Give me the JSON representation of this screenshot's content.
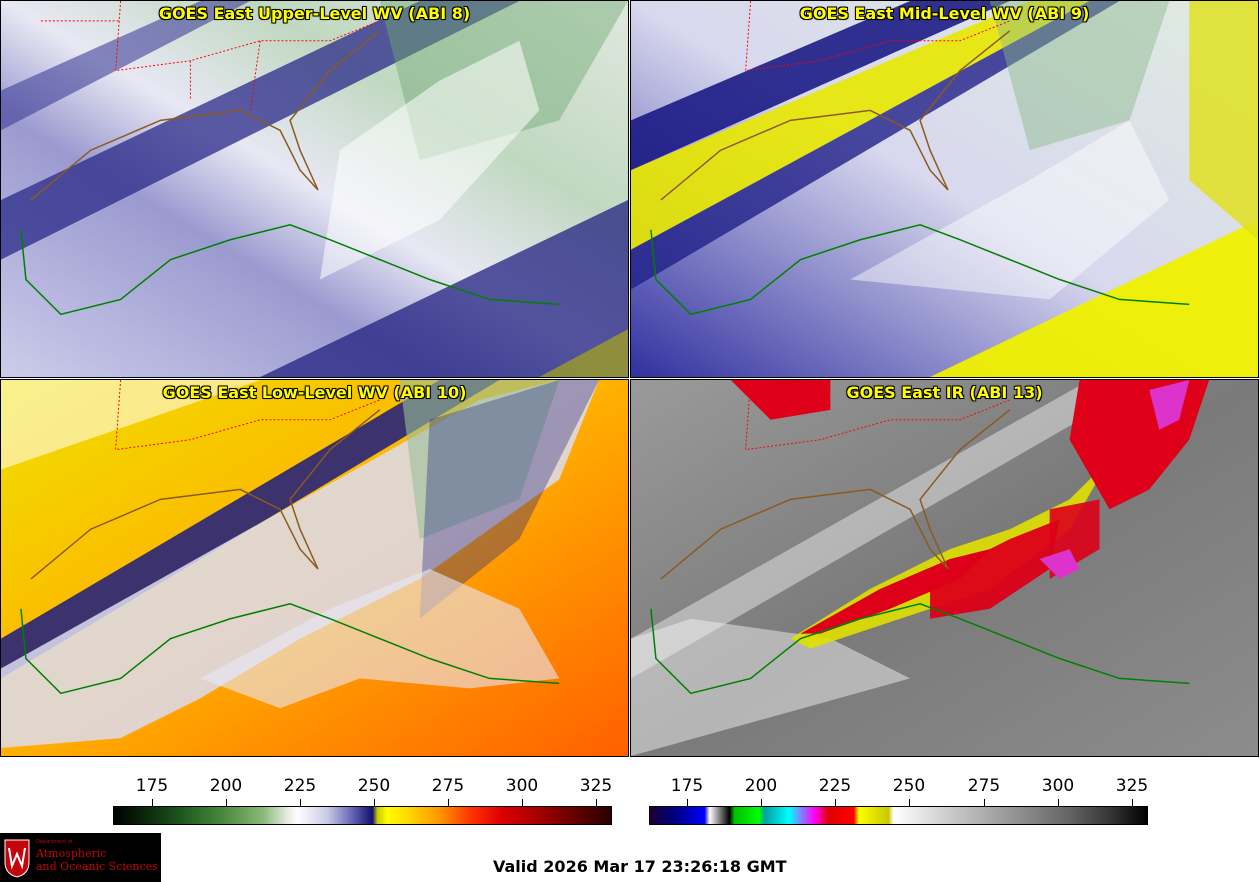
{
  "panels": [
    {
      "title": "GOES East Upper-Level WV (ABI 8)"
    },
    {
      "title": "GOES East Mid-Level WV (ABI 9)"
    },
    {
      "title": "GOES East Low-Level WV (ABI 10)"
    },
    {
      "title": "GOES East IR (ABI 13)"
    }
  ],
  "colorbars": {
    "left": {
      "ticks": [
        "175",
        "200",
        "225",
        "250",
        "275",
        "300",
        "325"
      ]
    },
    "right": {
      "ticks": [
        "175",
        "200",
        "225",
        "250",
        "275",
        "300",
        "325"
      ]
    }
  },
  "footer": {
    "valid": "Valid 2026 Mar 17 23:26:18 GMT"
  },
  "logo": {
    "line1": "Department of",
    "line2": "Atmospheric",
    "line3": "and Oceanic Sciences"
  },
  "colors": {
    "title_text": "#ffff00",
    "coastline": "#008000",
    "state_border": "#ff0000",
    "logo_red": "#c5050c"
  }
}
